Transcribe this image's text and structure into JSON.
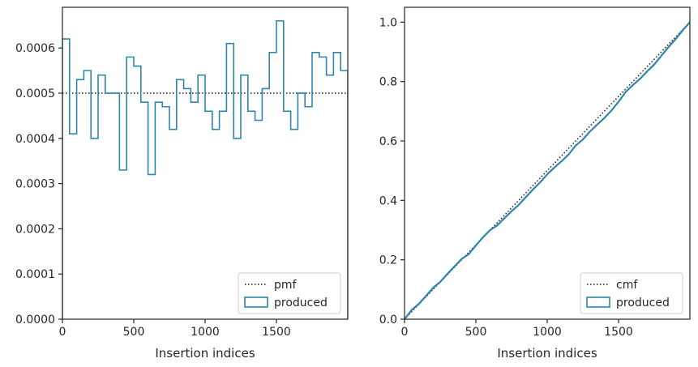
{
  "colors": {
    "produced": "#2e86ab",
    "reference": "#1a1a1a",
    "frame": "#262626"
  },
  "chart_data": [
    {
      "type": "step",
      "xlabel": "Insertion indices",
      "ylabel": "",
      "xlim": [
        0,
        2000
      ],
      "ylim": [
        0,
        0.00069
      ],
      "xticks": [
        0,
        500,
        1000,
        1500
      ],
      "xtick_labels": [
        "0",
        "500",
        "1000",
        "1500"
      ],
      "yticks": [
        0,
        0.0001,
        0.0002,
        0.0003,
        0.0004,
        0.0005,
        0.0006
      ],
      "ytick_labels": [
        "0.0000",
        "0.0001",
        "0.0002",
        "0.0003",
        "0.0004",
        "0.0005",
        "0.0006"
      ],
      "legend_position": "lower-right",
      "bin_width": 50,
      "series": [
        {
          "name": "pmf",
          "style": "dotted",
          "x": [
            0,
            2000
          ],
          "values": [
            0.0005,
            0.0005
          ]
        },
        {
          "name": "produced",
          "style": "step-histogram",
          "bin_edges": [
            0,
            50,
            100,
            150,
            200,
            250,
            300,
            350,
            400,
            450,
            500,
            550,
            600,
            650,
            700,
            750,
            800,
            850,
            900,
            950,
            1000,
            1050,
            1100,
            1150,
            1200,
            1250,
            1300,
            1350,
            1400,
            1450,
            1500,
            1550,
            1600,
            1650,
            1700,
            1750,
            1800,
            1850,
            1900,
            1950,
            2000
          ],
          "values": [
            0.00062,
            0.00041,
            0.00053,
            0.00055,
            0.0004,
            0.00054,
            0.0005,
            0.0005,
            0.00033,
            0.00058,
            0.00056,
            0.00048,
            0.00032,
            0.00048,
            0.00047,
            0.00042,
            0.00053,
            0.00051,
            0.00048,
            0.00054,
            0.00046,
            0.00042,
            0.00046,
            0.00061,
            0.0004,
            0.00054,
            0.00046,
            0.00044,
            0.00051,
            0.00059,
            0.00066,
            0.00046,
            0.00042,
            0.0005,
            0.00047,
            0.00059,
            0.00058,
            0.00054,
            0.00059,
            0.00055
          ]
        }
      ]
    },
    {
      "type": "line",
      "xlabel": "Insertion indices",
      "ylabel": "",
      "xlim": [
        0,
        2000
      ],
      "ylim": [
        0,
        1.05
      ],
      "xticks": [
        0,
        500,
        1000,
        1500
      ],
      "xtick_labels": [
        "0",
        "500",
        "1000",
        "1500"
      ],
      "yticks": [
        0,
        0.2,
        0.4,
        0.6,
        0.8,
        1.0
      ],
      "ytick_labels": [
        "0.0",
        "0.2",
        "0.4",
        "0.6",
        "0.8",
        "1.0"
      ],
      "legend_position": "lower-right",
      "series": [
        {
          "name": "cmf",
          "style": "dotted",
          "x": [
            0,
            2000
          ],
          "values": [
            0,
            1.0
          ]
        },
        {
          "name": "produced",
          "style": "solid",
          "x": [
            0,
            50,
            100,
            150,
            200,
            250,
            300,
            350,
            400,
            450,
            500,
            550,
            600,
            650,
            700,
            750,
            800,
            850,
            900,
            950,
            1000,
            1050,
            1100,
            1150,
            1200,
            1250,
            1300,
            1350,
            1400,
            1450,
            1500,
            1550,
            1600,
            1650,
            1700,
            1750,
            1800,
            1850,
            1900,
            1950,
            2000
          ],
          "values": [
            0.0,
            0.031,
            0.0515,
            0.078,
            0.1055,
            0.1255,
            0.1525,
            0.1775,
            0.2025,
            0.219,
            0.248,
            0.276,
            0.3,
            0.316,
            0.34,
            0.3635,
            0.3845,
            0.411,
            0.4365,
            0.4605,
            0.4875,
            0.5105,
            0.5315,
            0.5545,
            0.585,
            0.605,
            0.632,
            0.655,
            0.677,
            0.7025,
            0.732,
            0.765,
            0.788,
            0.809,
            0.834,
            0.8575,
            0.887,
            0.916,
            0.943,
            0.9725,
            1.0
          ]
        }
      ]
    }
  ]
}
